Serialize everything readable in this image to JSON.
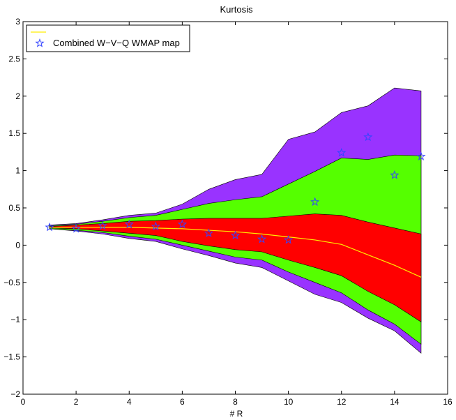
{
  "chart_data": {
    "type": "area",
    "title": "Kurtosis",
    "xlabel": "# R",
    "ylabel": "",
    "xlim": [
      0,
      16
    ],
    "ylim": [
      -2,
      3
    ],
    "xticks": [
      0,
      2,
      4,
      6,
      8,
      10,
      12,
      14,
      16
    ],
    "yticks": [
      -2,
      -1.5,
      -1,
      -0.5,
      0,
      0.5,
      1,
      1.5,
      2,
      2.5,
      3
    ],
    "grid": false,
    "legend_position": "top-left",
    "x": [
      1,
      2,
      3,
      4,
      5,
      6,
      7,
      8,
      9,
      10,
      11,
      12,
      13,
      14,
      15
    ],
    "bands": [
      {
        "color": "#9933ff",
        "upper": [
          0.27,
          0.29,
          0.34,
          0.4,
          0.43,
          0.55,
          0.75,
          0.88,
          0.95,
          1.42,
          1.52,
          1.78,
          1.87,
          2.11,
          2.07
        ],
        "lower": [
          0.22,
          0.19,
          0.15,
          0.09,
          0.05,
          -0.05,
          -0.14,
          -0.24,
          -0.3,
          -0.48,
          -0.66,
          -0.77,
          -0.98,
          -1.15,
          -1.45
        ]
      },
      {
        "color": "#55ff00",
        "upper": [
          0.26,
          0.28,
          0.32,
          0.37,
          0.4,
          0.48,
          0.56,
          0.61,
          0.65,
          0.82,
          0.99,
          1.17,
          1.15,
          1.21,
          1.2
        ],
        "lower": [
          0.22,
          0.2,
          0.17,
          0.12,
          0.08,
          0.0,
          -0.08,
          -0.16,
          -0.2,
          -0.36,
          -0.5,
          -0.64,
          -0.87,
          -1.06,
          -1.33
        ]
      },
      {
        "color": "#ff0000",
        "upper": [
          0.25,
          0.27,
          0.29,
          0.32,
          0.33,
          0.35,
          0.36,
          0.36,
          0.36,
          0.39,
          0.42,
          0.4,
          0.31,
          0.23,
          0.15
        ],
        "lower": [
          0.23,
          0.22,
          0.19,
          0.16,
          0.13,
          0.05,
          -0.01,
          -0.06,
          -0.09,
          -0.2,
          -0.3,
          -0.41,
          -0.62,
          -0.8,
          -1.03
        ]
      }
    ],
    "series": [
      {
        "name": "",
        "kind": "line",
        "color": "#ffee00",
        "values": [
          0.24,
          0.24,
          0.24,
          0.24,
          0.23,
          0.22,
          0.2,
          0.18,
          0.15,
          0.11,
          0.07,
          0.01,
          -0.13,
          -0.27,
          -0.43
        ]
      },
      {
        "name": "Combined W−V−Q WMAP map",
        "kind": "scatter",
        "marker": "star",
        "color": "#3344ff",
        "values": [
          0.24,
          0.22,
          0.26,
          0.28,
          0.25,
          0.28,
          0.16,
          0.13,
          0.08,
          0.07,
          0.58,
          1.24,
          1.45,
          0.94,
          1.19
        ]
      }
    ]
  }
}
